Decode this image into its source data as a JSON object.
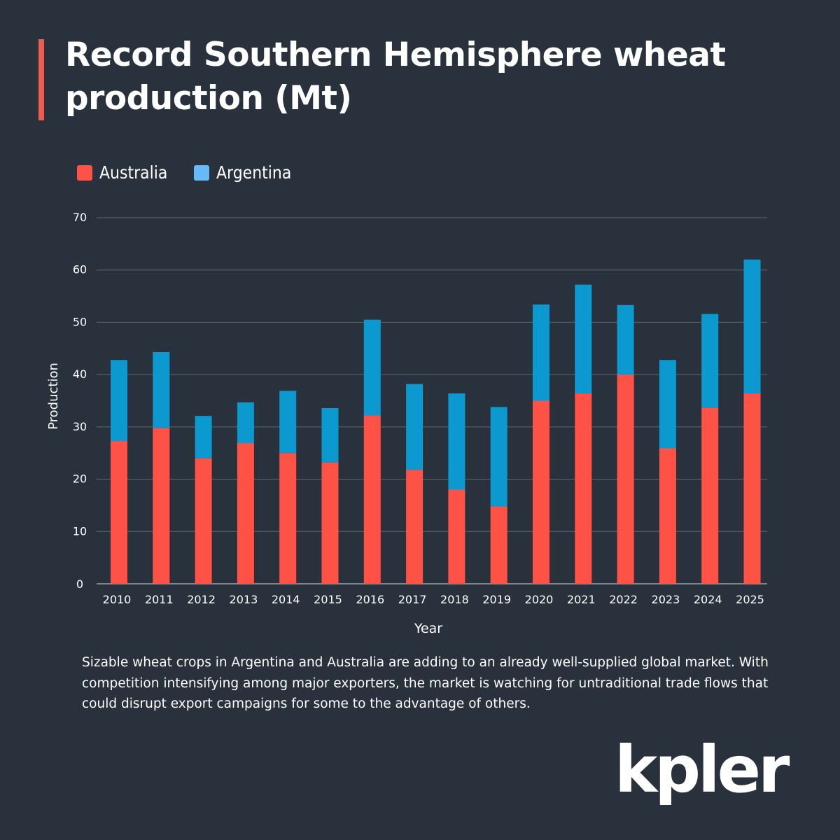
{
  "title": "Record Southern Hemisphere wheat production (Mt)",
  "caption": "Sizable wheat crops in Argentina and Australia are adding to an already well-supplied global market. With competition intensifying among major exporters, the market is watching for untraditional trade flows that could disrupt export campaigns for some to the advantage of others.",
  "logo": "kpler",
  "colors": {
    "background": "#29323c",
    "accent": "#f15a4f",
    "australia": "#ff5247",
    "argentina": "#0b99cf",
    "argentina_legend": "#66baf5",
    "grid": "#5f6770"
  },
  "chart_data": {
    "type": "bar",
    "stacked": true,
    "title": "Record Southern Hemisphere wheat production (Mt)",
    "xlabel": "Year",
    "ylabel": "Production",
    "ylim": [
      0,
      70
    ],
    "yticks": [
      0,
      10,
      20,
      30,
      40,
      50,
      60,
      70
    ],
    "grid": true,
    "legend_position": "top-left",
    "categories": [
      "2010",
      "2011",
      "2012",
      "2013",
      "2014",
      "2015",
      "2016",
      "2017",
      "2018",
      "2019",
      "2020",
      "2021",
      "2022",
      "2023",
      "2024",
      "2025"
    ],
    "series": [
      {
        "name": "Australia",
        "values": [
          27.3,
          29.8,
          24.0,
          26.9,
          25.0,
          23.2,
          32.2,
          21.8,
          18.0,
          14.8,
          35.0,
          36.4,
          40.0,
          25.9,
          33.7,
          36.4
        ]
      },
      {
        "name": "Argentina",
        "values": [
          15.5,
          14.5,
          8.1,
          7.8,
          11.9,
          10.4,
          18.3,
          16.4,
          18.4,
          19.0,
          18.4,
          20.8,
          13.3,
          16.9,
          17.9,
          25.6
        ]
      }
    ]
  }
}
